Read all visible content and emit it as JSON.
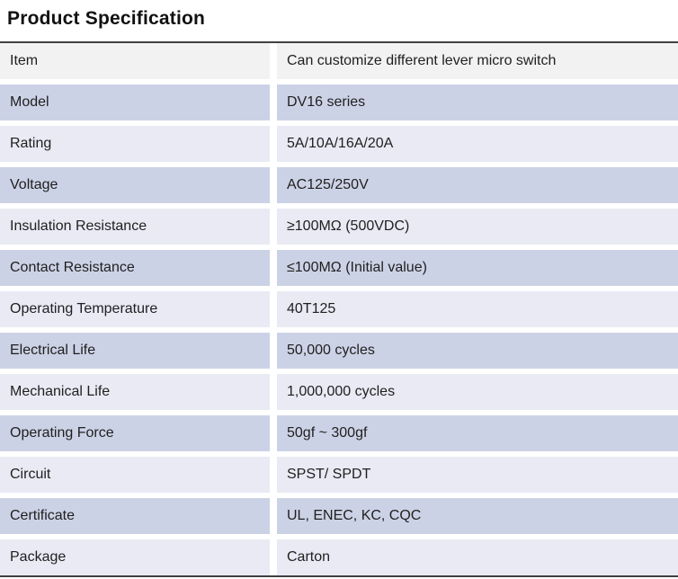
{
  "page": {
    "title": "Product Specification"
  },
  "table": {
    "rows": [
      {
        "label": "Item",
        "value": "Can customize different lever micro switch"
      },
      {
        "label": "Model",
        "value": "DV16 series"
      },
      {
        "label": "Rating",
        "value": "5A/10A/16A/20A"
      },
      {
        "label": "Voltage",
        "value": "AC125/250V"
      },
      {
        "label": "Insulation Resistance",
        "value": "≥100MΩ (500VDC)"
      },
      {
        "label": "Contact Resistance",
        "value": "≤100MΩ (Initial value)"
      },
      {
        "label": "Operating Temperature",
        "value": "40T125"
      },
      {
        "label": "Electrical Life",
        "value": "50,000 cycles"
      },
      {
        "label": "Mechanical Life",
        "value": "1,000,000 cycles"
      },
      {
        "label": "Operating Force",
        "value": "50gf ~ 300gf"
      },
      {
        "label": "Circuit",
        "value": "SPST/ SPDT"
      },
      {
        "label": "Certificate",
        "value": "UL, ENEC, KC, CQC"
      },
      {
        "label": "Package",
        "value": "Carton"
      }
    ]
  },
  "colors": {
    "row_header": "#f2f2f2",
    "row_even": "#ccd2e6",
    "row_odd": "#e9eaf4",
    "border_dark": "#404040",
    "text": "#1f1f1f"
  }
}
